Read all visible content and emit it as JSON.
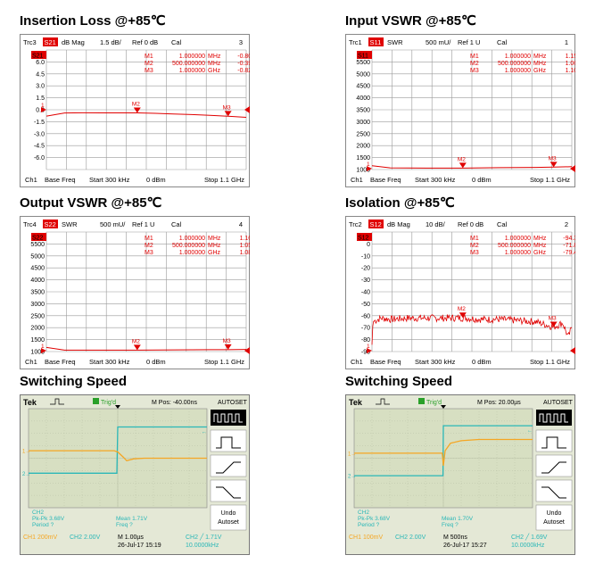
{
  "charts": [
    {
      "title": "Insertion Loss @+85℃",
      "header": {
        "trc": "Trc3",
        "param": "S21",
        "fmt": "dB Mag",
        "scale": "1.5 dB/",
        "ref": "Ref 0 dB",
        "cal": "Cal",
        "num": "3"
      },
      "trace_tag": "S21",
      "yticks": [
        "6.0",
        "4.5",
        "3.0",
        "1.5",
        "0.0",
        "-1.5",
        "-3.0",
        "-4.5",
        "-6.0"
      ],
      "markers": [
        {
          "name": "M1",
          "freq": "1.000000",
          "unit": "MHz",
          "value": "-0.8048",
          "vunit": "dB"
        },
        {
          "name": "M2",
          "freq": "500.000000",
          "unit": "MHz",
          "value": "-0.3935",
          "vunit": "dB"
        },
        {
          "name": "M3",
          "freq": "1.000000",
          "unit": "GHz",
          "value": "-0.8249",
          "vunit": "dB"
        }
      ],
      "footer": {
        "ch": "Ch1",
        "mode": "Base Freq",
        "start": "Start  300 kHz",
        "power": "0 dBm",
        "stop": "Stop  1.1 GHz"
      }
    },
    {
      "title": "Input VSWR @+85℃",
      "header": {
        "trc": "Trc1",
        "param": "S11",
        "fmt": "SWR",
        "scale": "500 mU/",
        "ref": "Ref 1 U",
        "cal": "Cal",
        "num": "1"
      },
      "trace_tag": "S11",
      "yticks": [
        "5500",
        "5000",
        "4500",
        "4000",
        "3500",
        "3000",
        "2500",
        "2000",
        "1500",
        "1000"
      ],
      "markers": [
        {
          "name": "M1",
          "freq": "1.000000",
          "unit": "MHz",
          "value": "1.1592",
          "vunit": "U"
        },
        {
          "name": "M2",
          "freq": "500.000000",
          "unit": "MHz",
          "value": "1.0640",
          "vunit": "U"
        },
        {
          "name": "M3",
          "freq": "1.000000",
          "unit": "GHz",
          "value": "1.1014",
          "vunit": "U"
        }
      ],
      "footer": {
        "ch": "Ch1",
        "mode": "Base Freq",
        "start": "Start  300 kHz",
        "power": "0 dBm",
        "stop": "Stop  1.1 GHz"
      }
    },
    {
      "title": "Output VSWR @+85℃",
      "header": {
        "trc": "Trc4",
        "param": "S22",
        "fmt": "SWR",
        "scale": "500 mU/",
        "ref": "Ref 1 U",
        "cal": "Cal",
        "num": "4"
      },
      "trace_tag": "S22",
      "yticks": [
        "5500",
        "5000",
        "4500",
        "4000",
        "3500",
        "3000",
        "2500",
        "2000",
        "1500",
        "1000"
      ],
      "markers": [
        {
          "name": "M1",
          "freq": "1.000000",
          "unit": "MHz",
          "value": "1.1651",
          "vunit": "U"
        },
        {
          "name": "M2",
          "freq": "500.000000",
          "unit": "MHz",
          "value": "1.0574",
          "vunit": "U"
        },
        {
          "name": "M3",
          "freq": "1.000000",
          "unit": "GHz",
          "value": "1.0807",
          "vunit": "U"
        }
      ],
      "footer": {
        "ch": "Ch1",
        "mode": "Base Freq",
        "start": "Start  300 kHz",
        "power": "0 dBm",
        "stop": "Stop  1.1 GHz"
      }
    },
    {
      "title": "Isolation @+85℃",
      "header": {
        "trc": "Trc2",
        "param": "S12",
        "fmt": "dB Mag",
        "scale": "10 dB/",
        "ref": "Ref 0 dB",
        "cal": "Cal",
        "num": "2"
      },
      "trace_tag": "S12",
      "yticks": [
        "0",
        "-10",
        "-20",
        "-30",
        "-40",
        "-50",
        "-60",
        "-70",
        "-80",
        "-90"
      ],
      "markers": [
        {
          "name": "M1",
          "freq": "1.000000",
          "unit": "MHz",
          "value": "-94.346",
          "vunit": "dB"
        },
        {
          "name": "M2",
          "freq": "500.000000",
          "unit": "MHz",
          "value": "-71.838",
          "vunit": "dB"
        },
        {
          "name": "M3",
          "freq": "1.000000",
          "unit": "GHz",
          "value": "-79.464",
          "vunit": "dB"
        }
      ],
      "footer": {
        "ch": "Ch1",
        "mode": "Base Freq",
        "start": "Start  300 kHz",
        "power": "0 dBm",
        "stop": "Stop  1.1 GHz"
      }
    }
  ],
  "scopes": [
    {
      "title": "Switching Speed",
      "brand": "Tek",
      "trig": "Trig'd",
      "mpos": "M Pos: -40.00ns",
      "autoset": "AUTOSET",
      "ch2_label": "CH2",
      "pkpk": "Pk-Pk 3.68V",
      "period": "Period ?",
      "mean": "Mean 1.71V",
      "freq": "Freq ?",
      "undo": "Undo",
      "autoset2": "Autoset",
      "ch1": "CH1  200mV",
      "ch2": "CH2  2.00V",
      "timebase": "M 1.00µs",
      "date": "26-Jul-17 15:19",
      "trig_info": "CH2 ╱ 1.71V",
      "trig_freq": "10.0000kHz"
    },
    {
      "title": "Switching Speed",
      "brand": "Tek",
      "trig": "Trig'd",
      "mpos": "M Pos: 20.00µs",
      "autoset": "AUTOSET",
      "ch2_label": "CH2",
      "pkpk": "Pk-Pk 3.68V",
      "period": "Period ?",
      "mean": "Mean 1.70V",
      "freq": "Freq ?",
      "undo": "Undo",
      "autoset2": "Autoset",
      "ch1": "CH1  100mV",
      "ch2": "CH2  2.00V",
      "timebase": "M 500ns",
      "date": "26-Jul-17 15:27",
      "trig_info": "CH2 ╱ 1.69V",
      "trig_freq": "10.0000kHz"
    }
  ],
  "chart_data": [
    {
      "type": "line",
      "title": "Insertion Loss @+85℃",
      "xlabel": "",
      "ylabel": "",
      "xlim": [
        0.0003,
        1100
      ],
      "ylim": [
        -7.5,
        7.5
      ],
      "series": [
        {
          "name": "Trc3 S21",
          "x": [
            0.0003,
            1,
            100,
            200,
            300,
            400,
            500,
            600,
            700,
            800,
            900,
            1000,
            1100
          ],
          "y": [
            -0.8,
            -0.8,
            -0.4,
            -0.38,
            -0.39,
            -0.39,
            -0.39,
            -0.45,
            -0.53,
            -0.61,
            -0.7,
            -0.82,
            -0.95
          ]
        }
      ]
    },
    {
      "type": "line",
      "title": "Input VSWR @+85℃",
      "xlabel": "",
      "ylabel": "",
      "xlim": [
        0.0003,
        1100
      ],
      "ylim": [
        1000,
        6000
      ],
      "series": [
        {
          "name": "Trc1 S11",
          "x": [
            0.0003,
            1,
            100,
            300,
            500,
            700,
            900,
            1000,
            1100
          ],
          "y": [
            1.16,
            1.16,
            1.07,
            1.06,
            1.06,
            1.08,
            1.09,
            1.1,
            1.12
          ]
        }
      ]
    },
    {
      "type": "line",
      "title": "Output VSWR @+85℃",
      "xlabel": "",
      "ylabel": "",
      "xlim": [
        0.0003,
        1100
      ],
      "ylim": [
        1000,
        6000
      ],
      "series": [
        {
          "name": "Trc4 S22",
          "x": [
            0.0003,
            1,
            100,
            300,
            500,
            700,
            900,
            1000,
            1100
          ],
          "y": [
            1.17,
            1.17,
            1.06,
            1.06,
            1.06,
            1.07,
            1.08,
            1.08,
            1.09
          ]
        }
      ]
    },
    {
      "type": "line",
      "title": "Isolation @+85℃",
      "xlabel": "",
      "ylabel": "",
      "xlim": [
        0.0003,
        1100
      ],
      "ylim": [
        -100,
        0
      ],
      "series": [
        {
          "name": "Trc2 S12",
          "x": [
            0.0003,
            1,
            5,
            50,
            100,
            200,
            300,
            400,
            500,
            600,
            700,
            800,
            900,
            1000,
            1050,
            1080,
            1100
          ],
          "y": [
            -94.3,
            -94.3,
            -75,
            -72,
            -73,
            -72,
            -72,
            -72,
            -71.8,
            -73,
            -73,
            -74,
            -75,
            -79.5,
            -76,
            -88,
            -80
          ]
        }
      ]
    },
    {
      "type": "line",
      "title": "Switching Speed",
      "xlabel": "",
      "ylabel": "",
      "x_unit": "µs",
      "series": [
        {
          "name": "CH1",
          "x": [
            -5,
            -0.2,
            0,
            0.3,
            0.5,
            0.9,
            1.5,
            5
          ],
          "y": [
            0.6,
            0.6,
            0.5,
            0.1,
            -0.2,
            -0.05,
            0,
            0
          ]
        },
        {
          "name": "CH2",
          "x": [
            -5,
            -0.05,
            0,
            5
          ],
          "y": [
            -1.2,
            -1.2,
            2.5,
            2.5
          ]
        }
      ]
    },
    {
      "type": "line",
      "title": "Switching Speed",
      "xlabel": "",
      "ylabel": "",
      "x_unit": "ns",
      "series": [
        {
          "name": "CH1",
          "x": [
            -2500,
            -30,
            0,
            50,
            200,
            500,
            1000,
            2500
          ],
          "y": [
            0.4,
            0.4,
            -0.6,
            0.6,
            1.2,
            1.4,
            1.5,
            1.5
          ]
        },
        {
          "name": "CH2",
          "x": [
            -2500,
            -10,
            0,
            2500
          ],
          "y": [
            -1.4,
            -1.4,
            2.6,
            2.6
          ]
        }
      ]
    }
  ],
  "colors": {
    "trace": "#e00000",
    "grid": "#999999",
    "scope_bg": "#d7dfc2",
    "ch1": "#f5a623",
    "ch2": "#2ab7b7"
  }
}
